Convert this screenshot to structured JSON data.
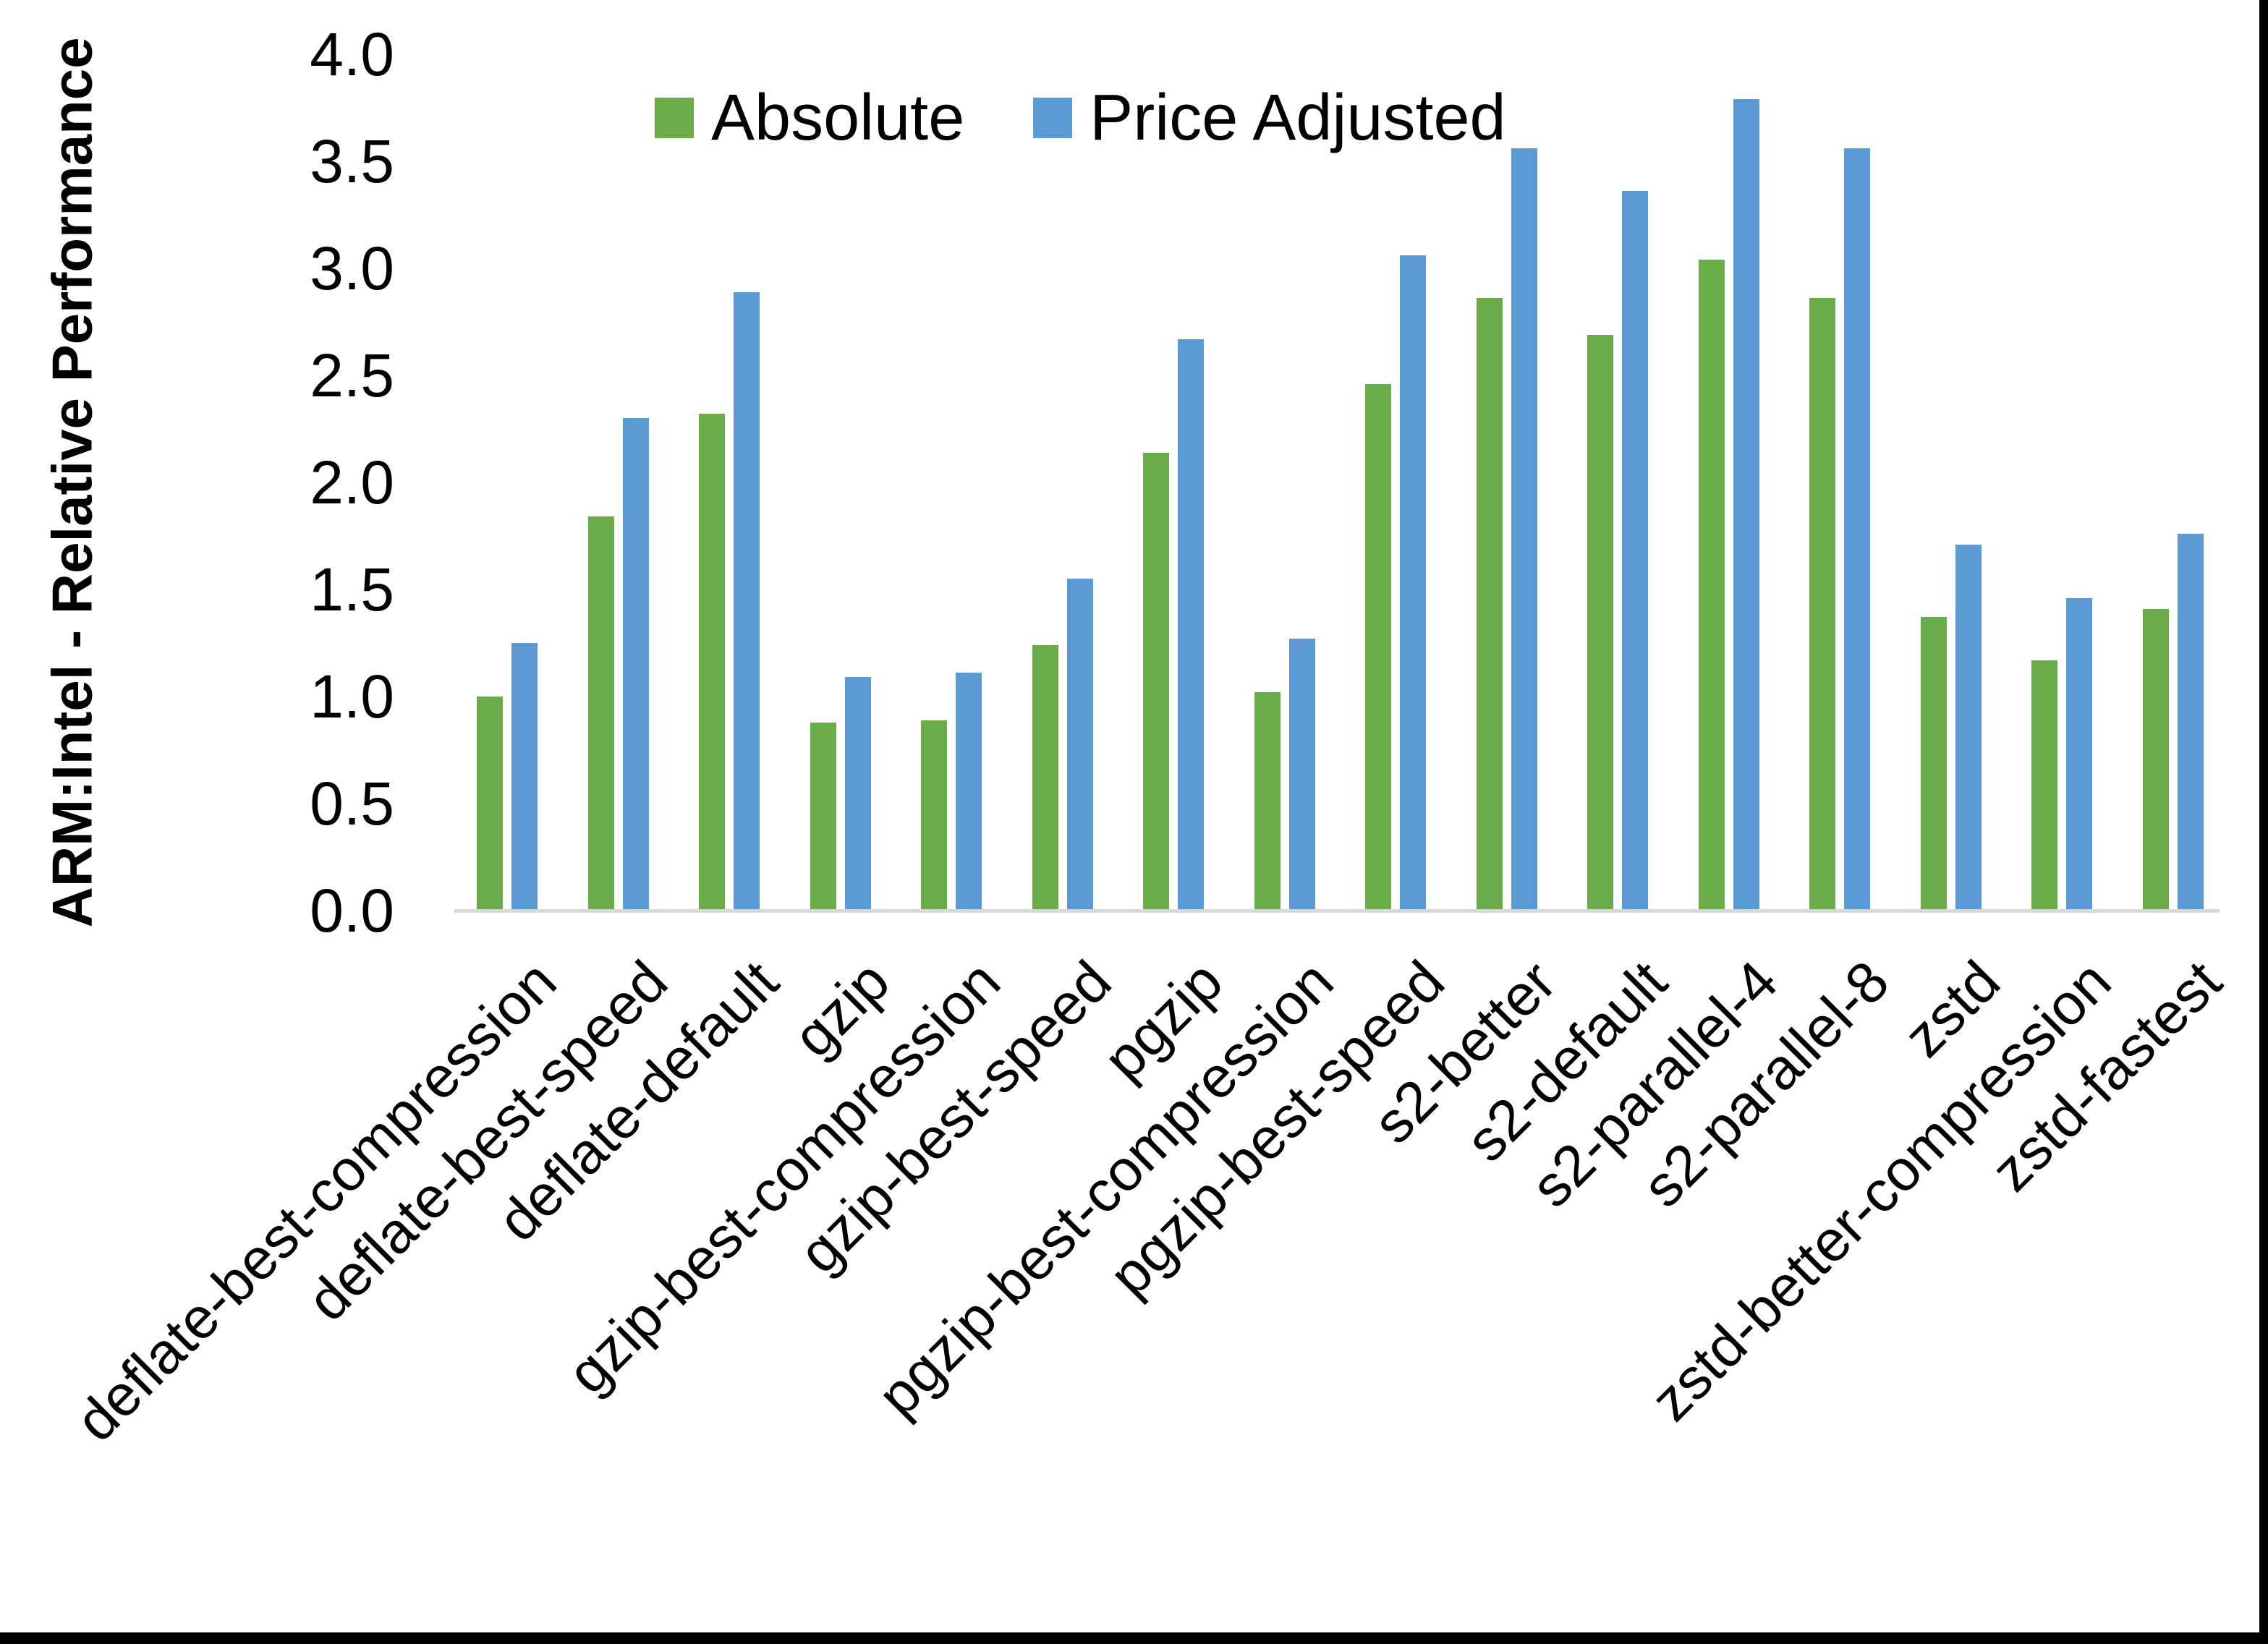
{
  "chart_data": {
    "type": "bar",
    "title": "",
    "xlabel": "",
    "ylabel": "ARM:Intel - Relative Performance",
    "ylim": [
      0.0,
      4.0
    ],
    "ytick_step": 0.5,
    "ytick_labels": [
      "0.0",
      "0.5",
      "1.0",
      "1.5",
      "2.0",
      "2.5",
      "3.0",
      "3.5",
      "4.0"
    ],
    "grid": false,
    "legend_position": "top-center",
    "categories": [
      "deflate-best-compression",
      "deflate-best-speed",
      "deflate-default",
      "gzip",
      "gzip-best-compression",
      "gzip-best-speed",
      "pgzip",
      "pgzip-best-compression",
      "pgzip-best-speed",
      "s2-better",
      "s2-default",
      "s2-parallel-4",
      "s2-parallel-8",
      "zstd",
      "zstd-better-compression",
      "zstd-fastest"
    ],
    "series": [
      {
        "name": "Absolute",
        "color": "#6aab4a",
        "values": [
          1.0,
          1.84,
          2.32,
          0.88,
          0.89,
          1.24,
          2.14,
          1.02,
          2.46,
          2.86,
          2.69,
          3.04,
          2.86,
          1.37,
          1.17,
          1.41
        ]
      },
      {
        "name": "Price Adjusted",
        "color": "#5b9bd5",
        "values": [
          1.25,
          2.3,
          2.89,
          1.09,
          1.11,
          1.55,
          2.67,
          1.27,
          3.06,
          3.56,
          3.36,
          3.79,
          3.56,
          1.71,
          1.46,
          1.76
        ]
      }
    ],
    "colors": {
      "axis_line": "#d9d9d9",
      "text": "#000000",
      "frame_border": "#000000",
      "background": "#ffffff"
    }
  }
}
